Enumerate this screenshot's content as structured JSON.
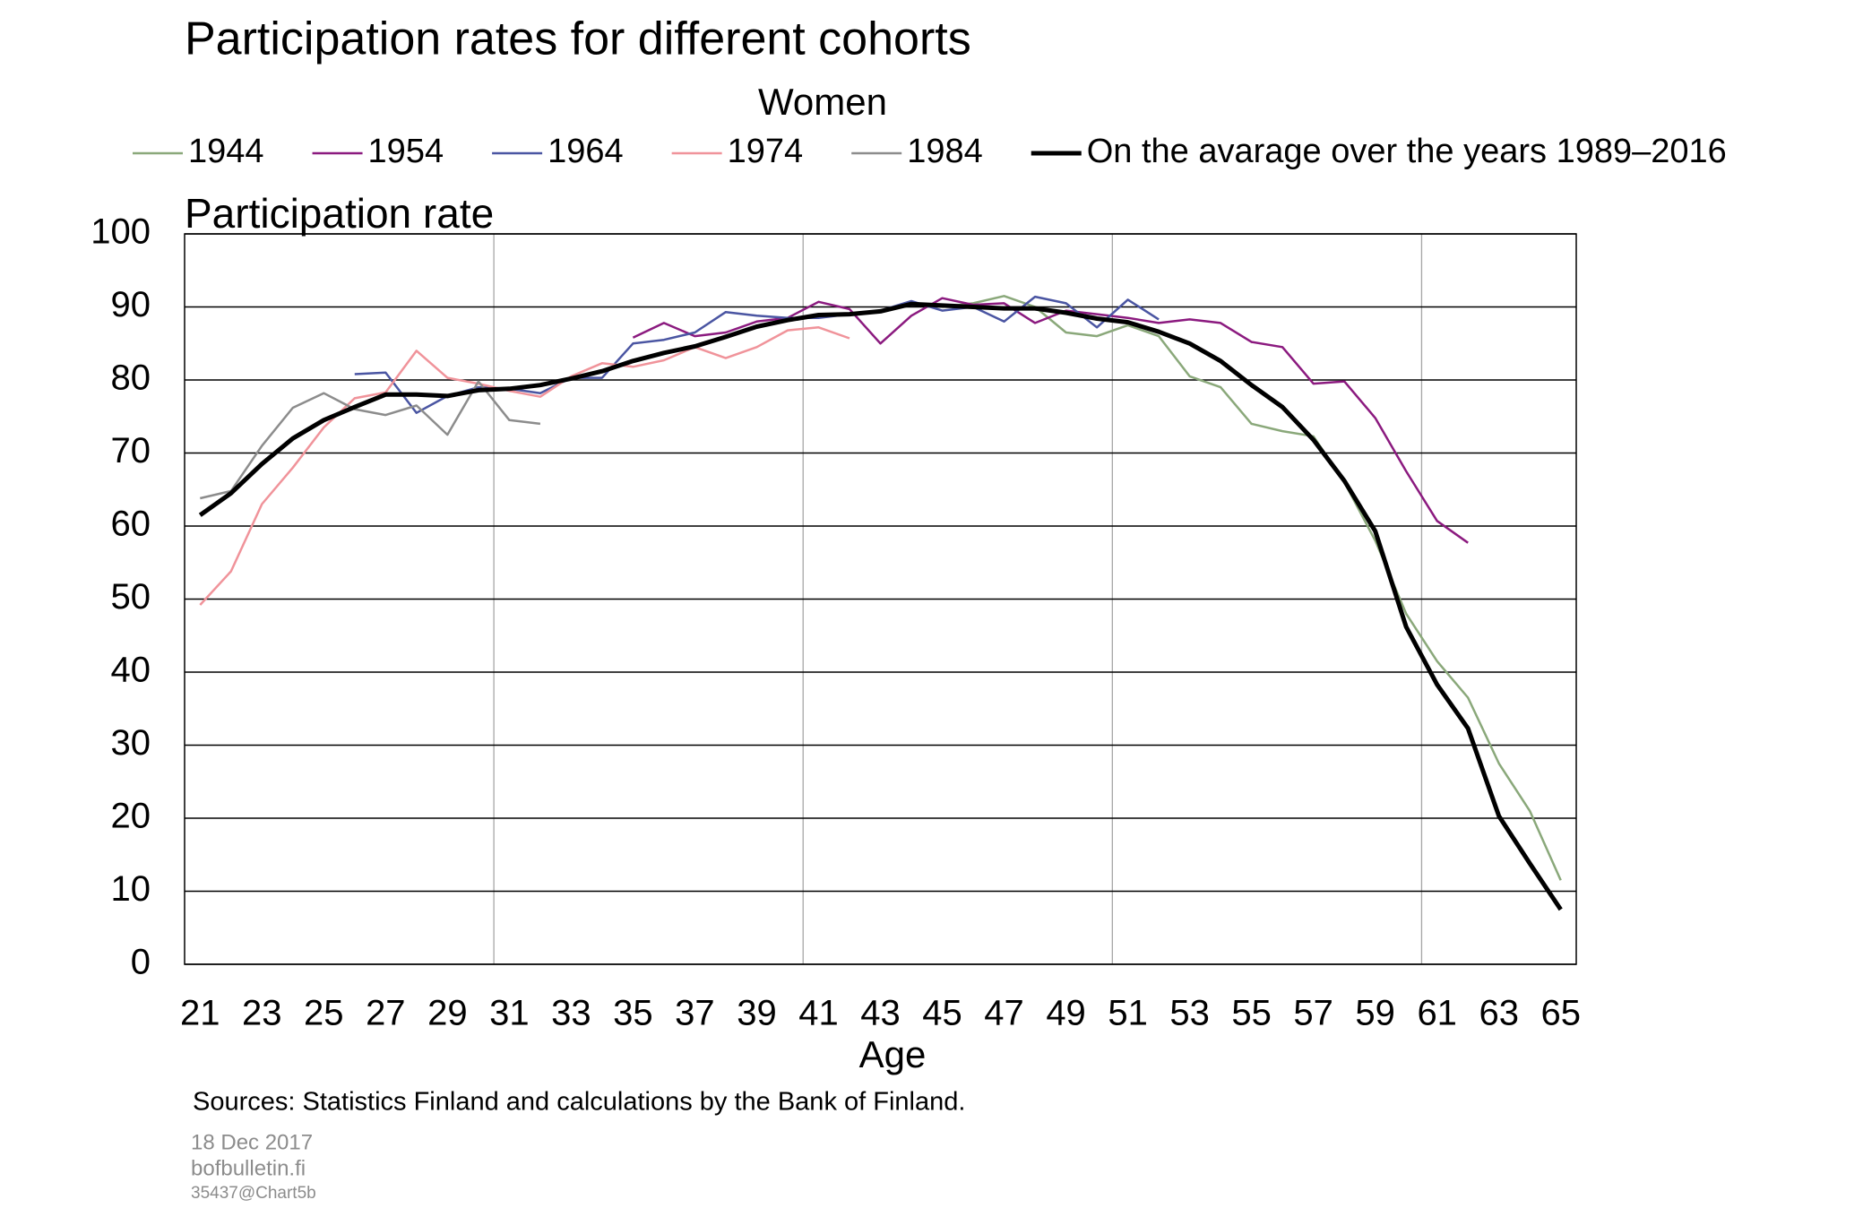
{
  "chart_data": {
    "type": "line",
    "title": "Participation rates for different cohorts",
    "subtitle": "Women",
    "y_label": "Participation rate",
    "x_label": "Age",
    "source": "Sources: Statistics Finland and calculations by the Bank of Finland.",
    "footer": [
      "18 Dec 2017",
      "bofbulletin.fi",
      "35437@Chart5b"
    ],
    "categories": [
      "21",
      null,
      "23",
      null,
      "25",
      null,
      "27",
      null,
      "29",
      null,
      "31",
      null,
      "33",
      null,
      "35",
      null,
      "37",
      null,
      "39",
      null,
      "41",
      null,
      "43",
      null,
      "45",
      null,
      "47",
      null,
      "49",
      null,
      "51",
      null,
      "53",
      null,
      "55",
      null,
      "57",
      null,
      "59",
      null,
      "61",
      null,
      "63",
      null,
      "65"
    ],
    "ylim": [
      0,
      100
    ],
    "yticks": [
      0,
      10,
      20,
      30,
      40,
      50,
      60,
      70,
      80,
      90,
      100
    ],
    "grid": true,
    "series": [
      {
        "name": "1944",
        "color": "#8aa87a",
        "width": 2.5,
        "values": [
          null,
          null,
          null,
          null,
          null,
          null,
          null,
          null,
          null,
          null,
          null,
          null,
          null,
          null,
          null,
          null,
          null,
          null,
          null,
          null,
          null,
          null,
          null,
          null,
          90,
          90.5,
          91.5,
          90,
          86.5,
          86,
          87.5,
          86,
          80.5,
          79,
          74,
          73,
          72.3,
          66,
          58,
          48,
          41.5,
          36.5,
          27.5,
          21,
          11.5
        ]
      },
      {
        "name": "1954",
        "color": "#8b1a7f",
        "width": 2.5,
        "values": [
          null,
          null,
          null,
          null,
          null,
          null,
          null,
          null,
          null,
          null,
          null,
          null,
          null,
          null,
          85.8,
          87.8,
          86,
          86.5,
          88,
          88.5,
          90.7,
          89.7,
          85,
          88.8,
          91.2,
          90.3,
          90.5,
          87.8,
          89.5,
          89,
          88.5,
          87.8,
          88.3,
          87.8,
          85.2,
          84.5,
          79.5,
          79.8,
          74.8,
          67.5,
          60.7,
          57.7,
          null,
          null,
          null
        ]
      },
      {
        "name": "1964",
        "color": "#4a55a2",
        "width": 2.5,
        "values": [
          null,
          null,
          null,
          null,
          null,
          80.8,
          81,
          75.5,
          77.8,
          79,
          78.8,
          78.2,
          80.3,
          80.3,
          85,
          85.5,
          86.5,
          89.3,
          88.8,
          88.5,
          88.5,
          89,
          89.5,
          90.8,
          89.5,
          90,
          88,
          91.4,
          90.5,
          87.2,
          91,
          88.3,
          null,
          null,
          null,
          null,
          null,
          null,
          null,
          null,
          null,
          null,
          null,
          null,
          null
        ]
      },
      {
        "name": "1974",
        "color": "#f0939a",
        "width": 2.5,
        "values": [
          49.2,
          53.8,
          63,
          68,
          73.5,
          77.5,
          78.3,
          84,
          80.3,
          79.5,
          78.5,
          77.7,
          80.5,
          82.3,
          81.8,
          82.7,
          84.5,
          83,
          84.5,
          86.8,
          87.2,
          85.7,
          null,
          null,
          null,
          null,
          null,
          null,
          null,
          null,
          null,
          null,
          null,
          null,
          null,
          null,
          null,
          null,
          null,
          null,
          null,
          null,
          null,
          null,
          null
        ]
      },
      {
        "name": "1984",
        "color": "#8c8c8c",
        "width": 2.5,
        "values": [
          63.8,
          64.8,
          71,
          76.2,
          78.2,
          76,
          75.2,
          76.5,
          72.5,
          79.8,
          74.5,
          74,
          null,
          null,
          null,
          null,
          null,
          null,
          null,
          null,
          null,
          null,
          null,
          null,
          null,
          null,
          null,
          null,
          null,
          null,
          null,
          null,
          null,
          null,
          null,
          null,
          null,
          null,
          null,
          null,
          null,
          null,
          null,
          null,
          null
        ]
      },
      {
        "name": "On the avarage over the years 1989–2016",
        "color": "#000000",
        "width": 5,
        "values": [
          61.5,
          64.5,
          68.5,
          72,
          74.5,
          76.3,
          78,
          78,
          77.8,
          78.6,
          78.8,
          79.3,
          80.2,
          81.2,
          82.6,
          83.7,
          84.6,
          85.9,
          87.3,
          88.2,
          88.9,
          89,
          89.4,
          90.4,
          90.2,
          90,
          89.8,
          89.8,
          89.2,
          88.4,
          87.9,
          86.6,
          85,
          82.6,
          79.3,
          76.3,
          71.8,
          66.2,
          59.3,
          46.2,
          38.3,
          32.3,
          20.3,
          13.8,
          7.5
        ]
      }
    ]
  }
}
